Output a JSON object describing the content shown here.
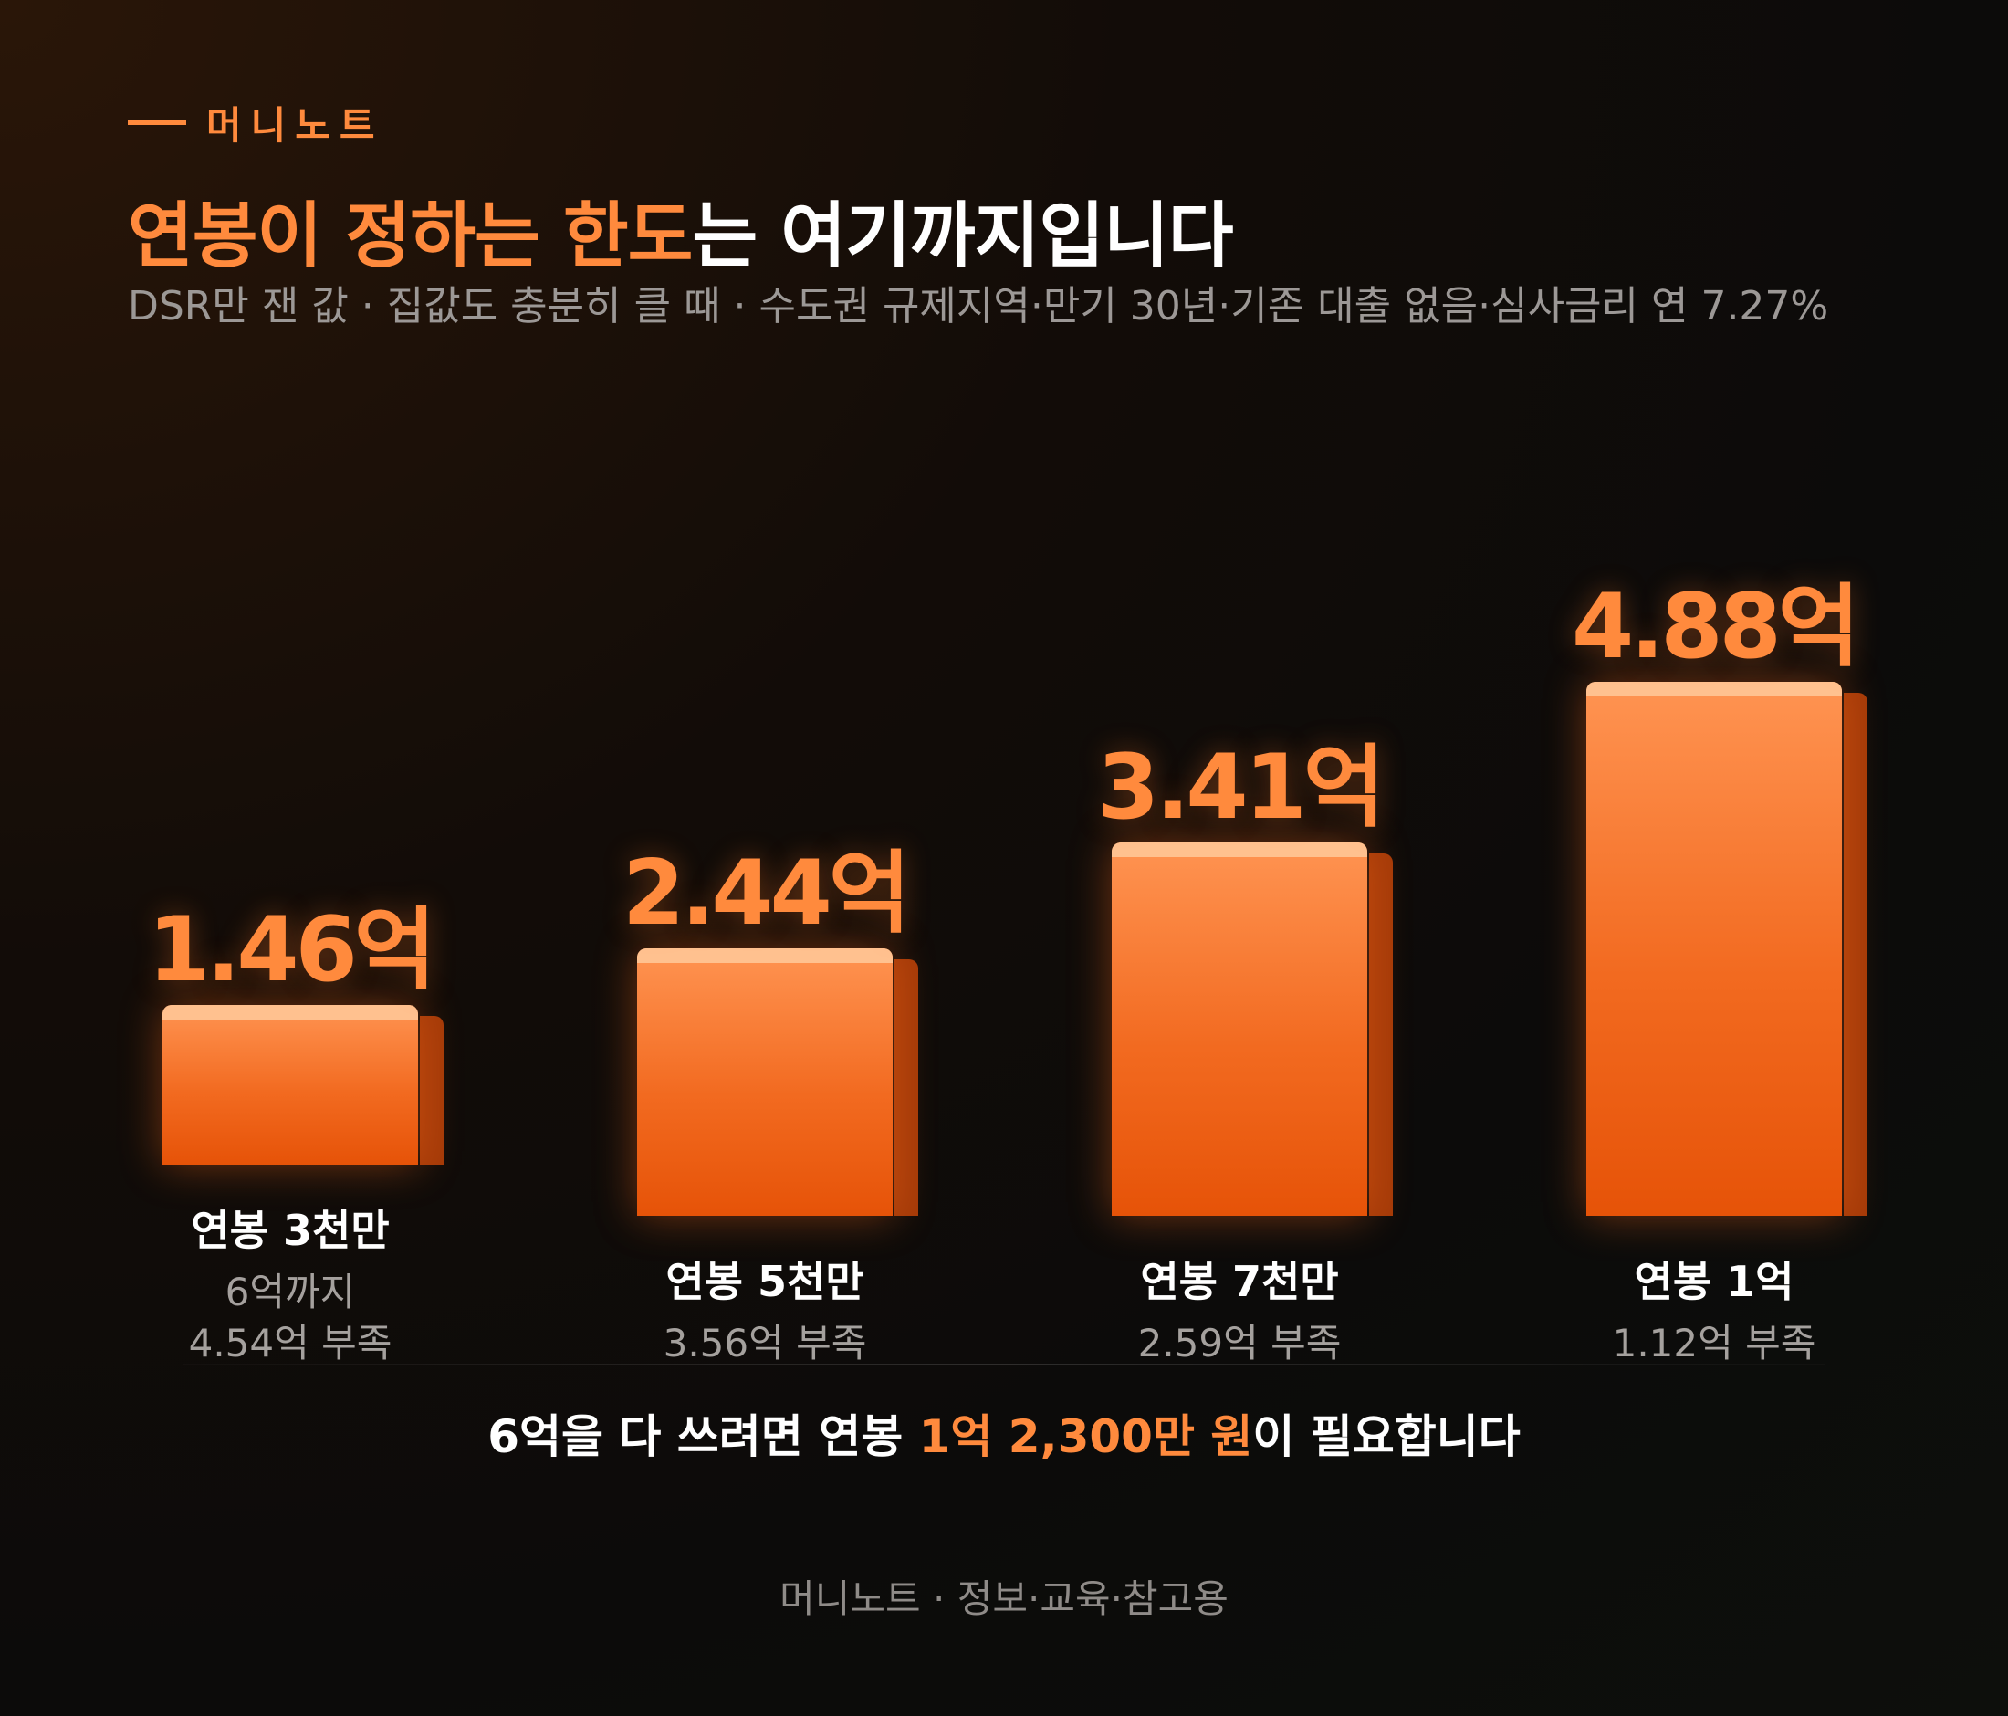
{
  "brand": {
    "name": "머니노트"
  },
  "title": {
    "part1_hl": "연봉이 정하는 한도",
    "part2": "는 여기까지입니다"
  },
  "subtitle": "DSR만 잰 값 · 집값도 충분히 클 때 · 수도권 규제지역·만기 30년·기존 대출 없음·심사금리 연 7.27%",
  "chart_data": {
    "type": "bar",
    "categories": [
      "연봉 3천만",
      "연봉 5천만",
      "연봉 7천만",
      "연봉 1억"
    ],
    "values": [
      1.46,
      2.44,
      3.41,
      4.88
    ],
    "value_labels": [
      "1.46억",
      "2.44억",
      "3.41억",
      "4.88억"
    ],
    "sub_labels": [
      [
        "6억까지",
        "4.54억 부족"
      ],
      [
        "3.56억 부족"
      ],
      [
        "2.59억 부족"
      ],
      [
        "1.12억 부족"
      ]
    ],
    "title": "",
    "xlabel": "",
    "ylabel": "",
    "unit": "억",
    "grid": false,
    "legend": "none",
    "bar_color": "#f26a20"
  },
  "conclusion": {
    "before": "6억을 다 쓰려면 연봉 ",
    "highlight": "1억 2,300만 원",
    "after": "이 필요합니다"
  },
  "footer": "머니노트 · 정보·교육·참고용"
}
